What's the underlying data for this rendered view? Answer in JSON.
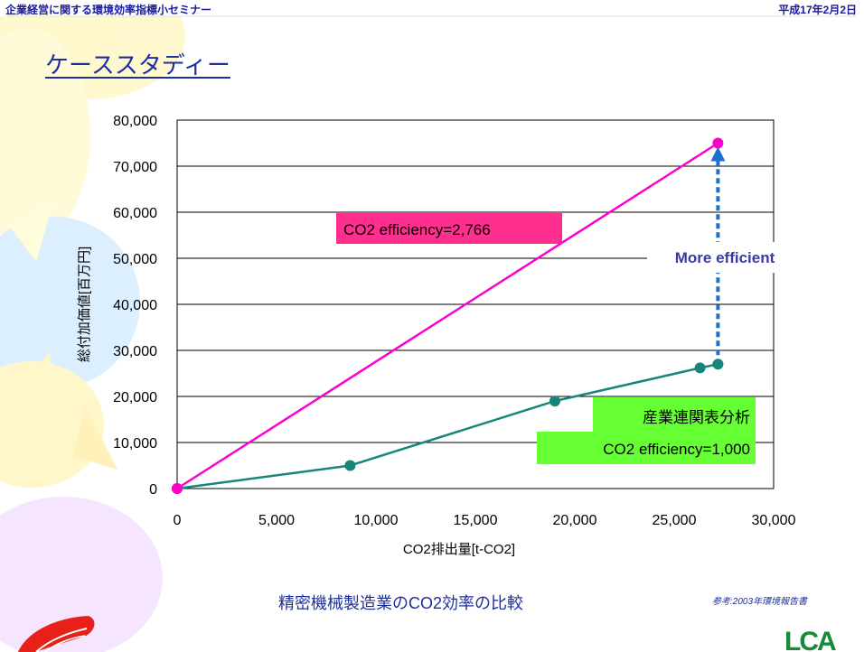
{
  "header": {
    "left_title": "企業経営に関する環境効率指標小セミナー",
    "date": "平成17年2月2日"
  },
  "slide": {
    "title": "ケーススタディー",
    "caption": "精密機械製造業のCO2効率の比較",
    "source_note": "参考:2003年環境報告書",
    "logo_text": "LCA"
  },
  "colors": {
    "magenta": "#ff00cc",
    "teal": "#17857a",
    "blue_arrow": "#1b6fd0",
    "pink_label_bg": "#ff2f8f",
    "green_label_bg": "#66ff33",
    "text_navy": "#1d2f9c"
  },
  "chart_data": {
    "type": "line",
    "xlabel": "CO2排出量[t-CO2]",
    "ylabel": "総付加価値[百万円]",
    "xlim": [
      0,
      30000
    ],
    "ylim": [
      0,
      80000
    ],
    "x_ticks": [
      0,
      5000,
      10000,
      15000,
      20000,
      25000,
      30000
    ],
    "y_ticks": [
      0,
      10000,
      20000,
      30000,
      40000,
      50000,
      60000,
      70000,
      80000
    ],
    "x_tick_labels": [
      "0",
      "5,000",
      "10,000",
      "15,000",
      "20,000",
      "25,000",
      "30,000"
    ],
    "y_tick_labels": [
      "0",
      "10,000",
      "20,000",
      "30,000",
      "40,000",
      "50,000",
      "60,000",
      "70,000",
      "80,000"
    ],
    "grid": "horizontal",
    "series": [
      {
        "id": "magenta",
        "color": "#ff00cc",
        "points": [
          {
            "x": 0,
            "y": 0
          },
          {
            "x": 27200,
            "y": 75000
          }
        ]
      },
      {
        "id": "teal",
        "color": "#17857a",
        "points": [
          {
            "x": 0,
            "y": 0
          },
          {
            "x": 8700,
            "y": 5000
          },
          {
            "x": 19000,
            "y": 19000
          },
          {
            "x": 26300,
            "y": 26200
          },
          {
            "x": 27200,
            "y": 27000
          }
        ]
      }
    ],
    "annotations": {
      "magenta_label": "CO2 efficiency=2,766",
      "teal_label_line1": "産業連関表分析",
      "teal_label_line2": "CO2 efficiency=1,000",
      "arrow_label": "More efficient",
      "arrow_from": {
        "x": 27200,
        "y": 27000
      },
      "arrow_to": {
        "x": 27200,
        "y": 75000
      }
    }
  }
}
